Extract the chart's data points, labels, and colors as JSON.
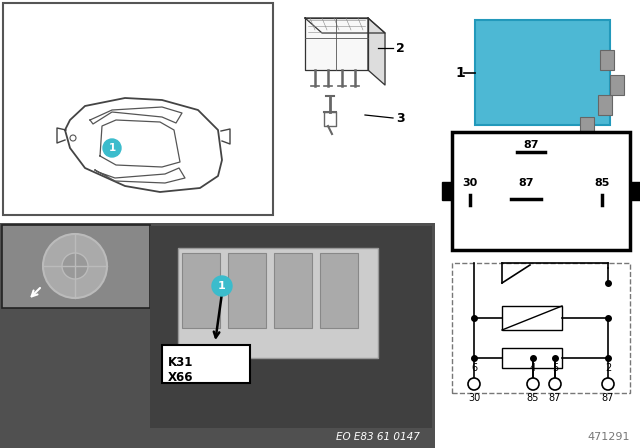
{
  "bg_color": "#ffffff",
  "relay_blue": "#4db8d4",
  "label1_bg": "#3bbccc",
  "label1_text": "1",
  "item2_label": "2",
  "item3_label": "3",
  "footer_ref": "EO E83 61 0147",
  "doc_number": "471291",
  "k31_label": "K31",
  "x66_label": "X66"
}
